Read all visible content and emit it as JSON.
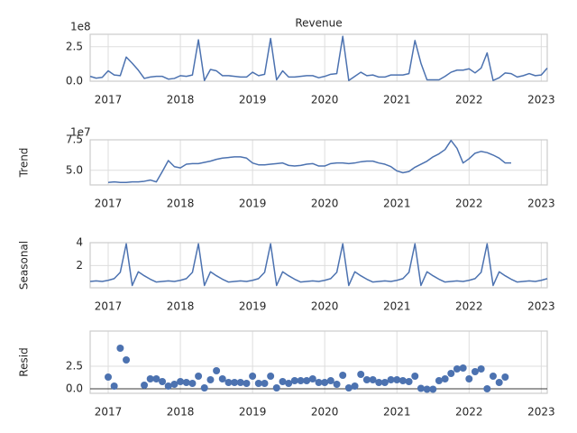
{
  "chart_data": [
    {
      "type": "line",
      "title": "Revenue",
      "offset_text": "1e8",
      "color": "#4c72b0",
      "grid": true,
      "x": [
        2016.75,
        2016.833,
        2016.917,
        2017,
        2017.083,
        2017.167,
        2017.25,
        2017.333,
        2017.417,
        2017.5,
        2017.583,
        2017.667,
        2017.75,
        2017.833,
        2017.917,
        2018,
        2018.083,
        2018.167,
        2018.25,
        2018.333,
        2018.417,
        2018.5,
        2018.583,
        2018.667,
        2018.75,
        2018.833,
        2018.917,
        2019,
        2019.083,
        2019.167,
        2019.25,
        2019.333,
        2019.417,
        2019.5,
        2019.583,
        2019.667,
        2019.75,
        2019.833,
        2019.917,
        2020,
        2020.083,
        2020.167,
        2020.25,
        2020.333,
        2020.417,
        2020.5,
        2020.583,
        2020.667,
        2020.75,
        2020.833,
        2020.917,
        2021,
        2021.083,
        2021.167,
        2021.25,
        2021.333,
        2021.417,
        2021.5,
        2021.583,
        2021.667,
        2021.75,
        2021.833,
        2021.917,
        2022,
        2022.083,
        2022.167,
        2022.25,
        2022.333,
        2022.417,
        2022.5,
        2022.583,
        2022.667,
        2022.75,
        2022.833,
        2022.917,
        2023,
        2023.083
      ],
      "values": [
        0.35,
        0.22,
        0.28,
        0.75,
        0.45,
        0.4,
        1.75,
        1.3,
        0.8,
        0.2,
        0.3,
        0.35,
        0.35,
        0.15,
        0.2,
        0.4,
        0.35,
        0.45,
        3.0,
        0.05,
        0.85,
        0.75,
        0.4,
        0.4,
        0.35,
        0.3,
        0.3,
        0.65,
        0.4,
        0.5,
        3.1,
        0.1,
        0.75,
        0.3,
        0.3,
        0.35,
        0.4,
        0.4,
        0.25,
        0.35,
        0.5,
        0.55,
        3.25,
        0.05,
        0.35,
        0.65,
        0.4,
        0.45,
        0.3,
        0.3,
        0.45,
        0.45,
        0.45,
        0.55,
        2.95,
        1.3,
        0.1,
        0.1,
        0.1,
        0.35,
        0.65,
        0.8,
        0.8,
        0.9,
        0.6,
        0.95,
        2.05,
        0.05,
        0.25,
        0.6,
        0.55,
        0.3,
        0.4,
        0.55,
        0.4,
        0.45,
        0.95
      ],
      "xlim": [
        2016.75,
        2023.083
      ],
      "ylim": [
        0,
        3.4
      ],
      "xticks": [
        2017,
        2018,
        2019,
        2020,
        2021,
        2022,
        2023
      ],
      "yticks": [
        {
          "value": 0,
          "label": "0.0"
        },
        2.5
      ]
    },
    {
      "type": "line",
      "ylabel": "Trend",
      "offset_text": "1e7",
      "color": "#4c72b0",
      "grid": true,
      "x": [
        2016.75,
        2016.833,
        2016.917,
        2017,
        2017.083,
        2017.167,
        2017.25,
        2017.333,
        2017.417,
        2017.5,
        2017.583,
        2017.667,
        2017.75,
        2017.833,
        2017.917,
        2018,
        2018.083,
        2018.167,
        2018.25,
        2018.333,
        2018.417,
        2018.5,
        2018.583,
        2018.667,
        2018.75,
        2018.833,
        2018.917,
        2019,
        2019.083,
        2019.167,
        2019.25,
        2019.333,
        2019.417,
        2019.5,
        2019.583,
        2019.667,
        2019.75,
        2019.833,
        2019.917,
        2020,
        2020.083,
        2020.167,
        2020.25,
        2020.333,
        2020.417,
        2020.5,
        2020.583,
        2020.667,
        2020.75,
        2020.833,
        2020.917,
        2021,
        2021.083,
        2021.167,
        2021.25,
        2021.333,
        2021.417,
        2021.5,
        2021.583,
        2021.667,
        2021.75,
        2021.833,
        2021.917,
        2022,
        2022.083,
        2022.167,
        2022.25,
        2022.333,
        2022.417,
        2022.5,
        2022.583,
        2022.667,
        2022.75,
        2022.833,
        2022.917,
        2023,
        2023.083
      ],
      "values": [
        null,
        null,
        null,
        4.0,
        4.05,
        4.0,
        4.0,
        4.05,
        4.05,
        4.1,
        4.2,
        4.05,
        4.9,
        5.8,
        5.3,
        5.2,
        5.5,
        5.55,
        5.55,
        5.65,
        5.75,
        5.9,
        6.0,
        6.05,
        6.1,
        6.1,
        6.0,
        5.6,
        5.45,
        5.45,
        5.5,
        5.55,
        5.6,
        5.4,
        5.35,
        5.4,
        5.5,
        5.55,
        5.35,
        5.35,
        5.55,
        5.6,
        5.6,
        5.55,
        5.6,
        5.7,
        5.75,
        5.75,
        5.6,
        5.5,
        5.3,
        4.95,
        4.8,
        4.9,
        5.25,
        5.5,
        5.75,
        6.1,
        6.35,
        6.7,
        7.45,
        6.8,
        5.6,
        5.95,
        6.4,
        6.55,
        6.45,
        6.25,
        6.0,
        5.6,
        5.6,
        null,
        null,
        null,
        null,
        null,
        null
      ],
      "xlim": [
        2016.75,
        2023.083
      ],
      "ylim": [
        3.8,
        7.5
      ],
      "xticks": [
        2017,
        2018,
        2019,
        2020,
        2021,
        2022,
        2023
      ],
      "yticks": [
        {
          "value": 5,
          "label": "5.0"
        },
        7.5
      ]
    },
    {
      "type": "line",
      "ylabel": "Seasonal",
      "color": "#4c72b0",
      "grid": true,
      "x": [
        2016.75,
        2016.833,
        2016.917,
        2017,
        2017.083,
        2017.167,
        2017.25,
        2017.333,
        2017.417,
        2017.5,
        2017.583,
        2017.667,
        2017.75,
        2017.833,
        2017.917,
        2018,
        2018.083,
        2018.167,
        2018.25,
        2018.333,
        2018.417,
        2018.5,
        2018.583,
        2018.667,
        2018.75,
        2018.833,
        2018.917,
        2019,
        2019.083,
        2019.167,
        2019.25,
        2019.333,
        2019.417,
        2019.5,
        2019.583,
        2019.667,
        2019.75,
        2019.833,
        2019.917,
        2020,
        2020.083,
        2020.167,
        2020.25,
        2020.333,
        2020.417,
        2020.5,
        2020.583,
        2020.667,
        2020.75,
        2020.833,
        2020.917,
        2021,
        2021.083,
        2021.167,
        2021.25,
        2021.333,
        2021.417,
        2021.5,
        2021.583,
        2021.667,
        2021.75,
        2021.833,
        2021.917,
        2022,
        2022.083,
        2022.167,
        2022.25,
        2022.333,
        2022.417,
        2022.5,
        2022.583,
        2022.667,
        2022.75,
        2022.833,
        2022.917,
        2023,
        2023.083
      ],
      "values": [
        0.6,
        0.65,
        0.6,
        0.7,
        0.85,
        1.4,
        3.9,
        0.25,
        1.45,
        1.1,
        0.8,
        0.55,
        0.6,
        0.65,
        0.6,
        0.7,
        0.85,
        1.4,
        3.9,
        0.25,
        1.45,
        1.1,
        0.8,
        0.55,
        0.6,
        0.65,
        0.6,
        0.7,
        0.85,
        1.4,
        3.9,
        0.25,
        1.45,
        1.1,
        0.8,
        0.55,
        0.6,
        0.65,
        0.6,
        0.7,
        0.85,
        1.4,
        3.9,
        0.25,
        1.45,
        1.1,
        0.8,
        0.55,
        0.6,
        0.65,
        0.6,
        0.7,
        0.85,
        1.4,
        3.9,
        0.25,
        1.45,
        1.1,
        0.8,
        0.55,
        0.6,
        0.65,
        0.6,
        0.7,
        0.85,
        1.4,
        3.9,
        0.25,
        1.45,
        1.1,
        0.8,
        0.55,
        0.6,
        0.65,
        0.6,
        0.7,
        0.85
      ],
      "xlim": [
        2016.75,
        2023.083
      ],
      "ylim": [
        0.05,
        4.0
      ],
      "xticks": [
        2017,
        2018,
        2019,
        2020,
        2021,
        2022,
        2023
      ],
      "yticks": [
        2,
        4
      ]
    },
    {
      "type": "scatter",
      "ylabel": "Resid",
      "color": "#4c72b0",
      "grid": true,
      "hline": 0,
      "x": [
        2016.75,
        2016.833,
        2016.917,
        2017,
        2017.083,
        2017.167,
        2017.25,
        2017.333,
        2017.417,
        2017.5,
        2017.583,
        2017.667,
        2017.75,
        2017.833,
        2017.917,
        2018,
        2018.083,
        2018.167,
        2018.25,
        2018.333,
        2018.417,
        2018.5,
        2018.583,
        2018.667,
        2018.75,
        2018.833,
        2018.917,
        2019,
        2019.083,
        2019.167,
        2019.25,
        2019.333,
        2019.417,
        2019.5,
        2019.583,
        2019.667,
        2019.75,
        2019.833,
        2019.917,
        2020,
        2020.083,
        2020.167,
        2020.25,
        2020.333,
        2020.417,
        2020.5,
        2020.583,
        2020.667,
        2020.75,
        2020.833,
        2020.917,
        2021,
        2021.083,
        2021.167,
        2021.25,
        2021.333,
        2021.417,
        2021.5,
        2021.583,
        2021.667,
        2021.75,
        2021.833,
        2021.917,
        2022,
        2022.083,
        2022.167,
        2022.25,
        2022.333,
        2022.417,
        2022.5,
        2022.583,
        2022.667,
        2022.75,
        2022.833,
        2022.917,
        2023,
        2023.083
      ],
      "values": [
        null,
        null,
        null,
        1.3,
        0.3,
        4.5,
        3.2,
        null,
        null,
        0.4,
        1.1,
        1.1,
        0.8,
        0.3,
        0.5,
        0.8,
        0.7,
        0.6,
        1.4,
        0.1,
        1.0,
        2.0,
        1.1,
        0.7,
        0.7,
        0.7,
        0.6,
        1.4,
        0.6,
        0.6,
        1.4,
        0.1,
        0.8,
        0.6,
        0.9,
        0.9,
        0.9,
        1.1,
        0.7,
        0.7,
        0.9,
        0.5,
        1.5,
        0.1,
        0.3,
        1.6,
        1.0,
        1.0,
        0.7,
        0.7,
        1.0,
        1.0,
        0.9,
        0.8,
        1.4,
        0.05,
        -0.05,
        -0.05,
        0.9,
        1.1,
        1.7,
        2.2,
        2.3,
        1.1,
        1.9,
        2.2,
        0.0,
        1.4,
        0.7,
        1.3,
        null,
        null,
        null,
        null,
        null,
        null,
        null
      ],
      "xlim": [
        2016.75,
        2023.083
      ],
      "ylim": [
        -0.5,
        6.4
      ],
      "xticks": [
        2017,
        2018,
        2019,
        2020,
        2021,
        2022,
        2023
      ],
      "yticks": [
        {
          "value": 0,
          "label": "0.0"
        },
        2.5
      ]
    }
  ]
}
